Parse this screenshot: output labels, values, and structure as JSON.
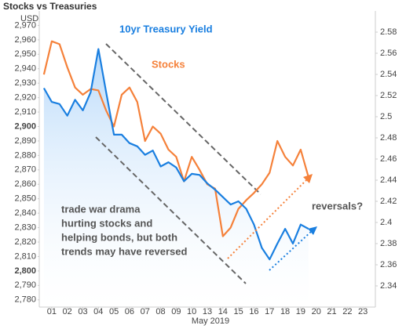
{
  "chart_data": {
    "type": "line",
    "title": "Stocks vs Treasuries",
    "y_label": "USD",
    "x_label": "May 2019",
    "xlim": [
      -0.8,
      20.8
    ],
    "xticks": [
      {
        "value": 0,
        "label": "01"
      },
      {
        "value": 1,
        "label": "02"
      },
      {
        "value": 2,
        "label": "03"
      },
      {
        "value": 3,
        "label": "04"
      },
      {
        "value": 4,
        "label": "05"
      },
      {
        "value": 5,
        "label": "06"
      },
      {
        "value": 6,
        "label": "07"
      },
      {
        "value": 7,
        "label": "08"
      },
      {
        "value": 8,
        "label": "09"
      },
      {
        "value": 9,
        "label": "10"
      },
      {
        "value": 10,
        "label": "13"
      },
      {
        "value": 11,
        "label": "14"
      },
      {
        "value": 12,
        "label": "15"
      },
      {
        "value": 13,
        "label": "16"
      },
      {
        "value": 14,
        "label": "17"
      },
      {
        "value": 15,
        "label": "18"
      },
      {
        "value": 16,
        "label": "19"
      },
      {
        "value": 17,
        "label": "20"
      },
      {
        "value": 18,
        "label": "21"
      },
      {
        "value": 19,
        "label": "22"
      },
      {
        "value": 20,
        "label": "23"
      }
    ],
    "ylim": [
      2775,
      2980
    ],
    "yticks": [
      {
        "value": 2780,
        "label": "2,780"
      },
      {
        "value": 2790,
        "label": "2,790"
      },
      {
        "value": 2800,
        "label": "2,800"
      },
      {
        "value": 2810,
        "label": "2,810"
      },
      {
        "value": 2820,
        "label": "2,820"
      },
      {
        "value": 2830,
        "label": "2,830"
      },
      {
        "value": 2840,
        "label": "2,840"
      },
      {
        "value": 2850,
        "label": "2,850"
      },
      {
        "value": 2860,
        "label": "2,860"
      },
      {
        "value": 2870,
        "label": "2,870"
      },
      {
        "value": 2880,
        "label": "2,880"
      },
      {
        "value": 2890,
        "label": "2,890"
      },
      {
        "value": 2900,
        "label": "2,900"
      },
      {
        "value": 2910,
        "label": "2,910"
      },
      {
        "value": 2920,
        "label": "2,920"
      },
      {
        "value": 2930,
        "label": "2,930"
      },
      {
        "value": 2940,
        "label": "2,940"
      },
      {
        "value": 2950,
        "label": "2,950"
      },
      {
        "value": 2960,
        "label": "2,960"
      },
      {
        "value": 2970,
        "label": "2,970"
      }
    ],
    "y2lim": [
      2.32,
      2.6
    ],
    "y2ticks": [
      2.34,
      2.36,
      2.38,
      2.4,
      2.42,
      2.44,
      2.46,
      2.48,
      2.5,
      2.52,
      2.54,
      2.56,
      2.58
    ],
    "x": [
      -0.5,
      0,
      0.5,
      1,
      1.5,
      2,
      2.5,
      3,
      3.5,
      4,
      4.5,
      5,
      5.5,
      6,
      6.5,
      7,
      7.5,
      8,
      8.5,
      9,
      9.5,
      10,
      10.5,
      11,
      11.5,
      12,
      12.5,
      13,
      13.5,
      14,
      14.5,
      15,
      15.5,
      16,
      16.5
    ],
    "series": [
      {
        "name": "Stocks",
        "color": "#f5813a",
        "axis": "y",
        "values": [
          2936,
          2959,
          2957,
          2941,
          2927,
          2922,
          2926,
          2925,
          2911,
          2900,
          2922,
          2927,
          2917,
          2890,
          2900,
          2895,
          2884,
          2879,
          2862,
          2879,
          2870,
          2860,
          2857,
          2824,
          2830,
          2843,
          2849,
          2854,
          2860,
          2868,
          2890,
          2879,
          2873,
          2884,
          2865
        ]
      },
      {
        "name": "10yr Treasury Yield",
        "color": "#1a7fe0",
        "axis": "y2",
        "values": [
          2.527,
          2.514,
          2.512,
          2.501,
          2.516,
          2.506,
          2.523,
          2.564,
          2.523,
          2.483,
          2.483,
          2.475,
          2.472,
          2.464,
          2.468,
          2.453,
          2.457,
          2.452,
          2.439,
          2.446,
          2.445,
          2.437,
          2.431,
          2.424,
          2.417,
          2.42,
          2.413,
          2.398,
          2.376,
          2.365,
          2.38,
          2.394,
          2.38,
          2.398,
          2.394
        ]
      }
    ],
    "annotations": [
      "trade war drama",
      "hurting stocks and",
      "helping bonds, but both",
      "trends may have reversed",
      "reversals?"
    ]
  }
}
